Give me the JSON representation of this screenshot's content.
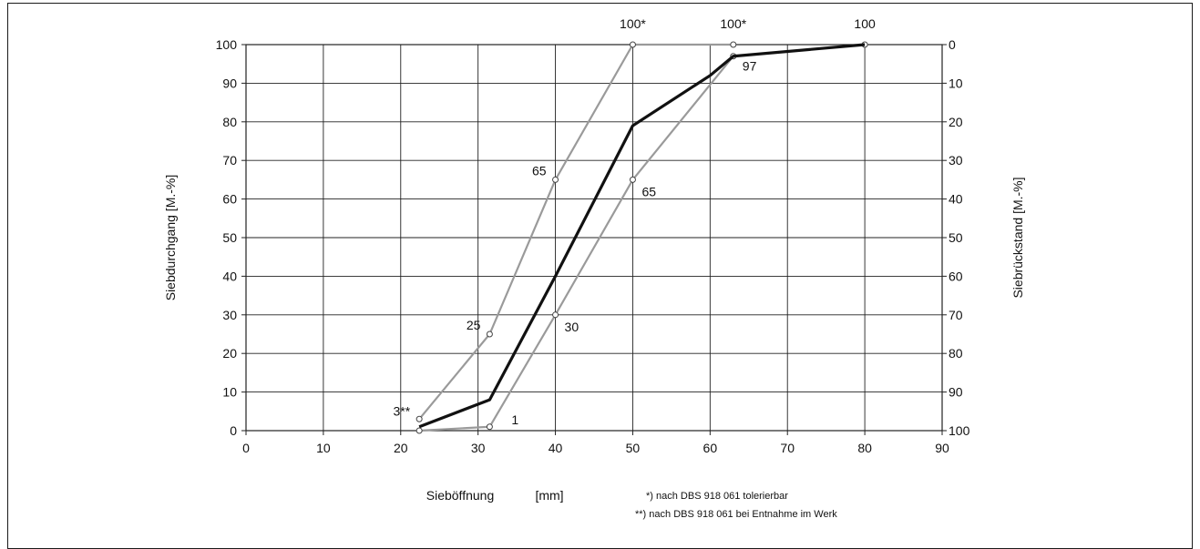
{
  "chart_data": {
    "type": "line",
    "ylabel": "Siebdurchgang    [M.-%]",
    "ylabel_right": "Siebrückstand    [M.-%]",
    "xlabel": "Sieböffnung",
    "xunit": "[mm]",
    "xlim": [
      0,
      90
    ],
    "ylim": [
      0,
      100
    ],
    "x_ticks": [
      0,
      10,
      20,
      30,
      40,
      50,
      60,
      70,
      80,
      90
    ],
    "y_ticks_left": [
      0,
      10,
      20,
      30,
      40,
      50,
      60,
      70,
      80,
      90,
      100
    ],
    "y_ticks_right": [
      100,
      90,
      80,
      70,
      60,
      50,
      40,
      30,
      20,
      10,
      0
    ],
    "grid": true,
    "series": [
      {
        "role": "upper",
        "color": "#9a9a9a",
        "markers": true,
        "x": [
          22.4,
          31.5,
          40,
          50,
          63
        ],
        "y": [
          3,
          25,
          65,
          100,
          100
        ]
      },
      {
        "role": "lower",
        "color": "#9a9a9a",
        "markers": true,
        "x": [
          22.4,
          31.5,
          40,
          50,
          63,
          80
        ],
        "y": [
          0,
          1,
          30,
          65,
          97,
          100
        ]
      },
      {
        "role": "curve",
        "color": "#111111",
        "markers": false,
        "x": [
          22.4,
          31.5,
          40,
          50,
          60,
          63,
          80
        ],
        "y": [
          1,
          8,
          40,
          79,
          92,
          97,
          100
        ]
      }
    ],
    "point_labels": [
      {
        "text": "3**",
        "x": 22.4,
        "y": 3,
        "pos": "left"
      },
      {
        "text": "25",
        "x": 31.5,
        "y": 25,
        "pos": "left"
      },
      {
        "text": "65",
        "x": 40,
        "y": 65,
        "pos": "left"
      },
      {
        "text": "1",
        "x": 31.5,
        "y": 1,
        "pos": "right"
      },
      {
        "text": "30",
        "x": 40,
        "y": 30,
        "pos": "right"
      },
      {
        "text": "65",
        "x": 50,
        "y": 65,
        "pos": "right"
      },
      {
        "text": "97",
        "x": 63,
        "y": 97,
        "pos": "right"
      },
      {
        "text": "100*",
        "x": 50,
        "y": 100,
        "pos": "top"
      },
      {
        "text": "100*",
        "x": 63,
        "y": 100,
        "pos": "top"
      },
      {
        "text": "100",
        "x": 80,
        "y": 100,
        "pos": "top"
      }
    ],
    "notes": [
      "*)  nach DBS 918 061 tolerierbar",
      "**)  nach DBS 918 061 bei Entnahme im Werk"
    ]
  }
}
